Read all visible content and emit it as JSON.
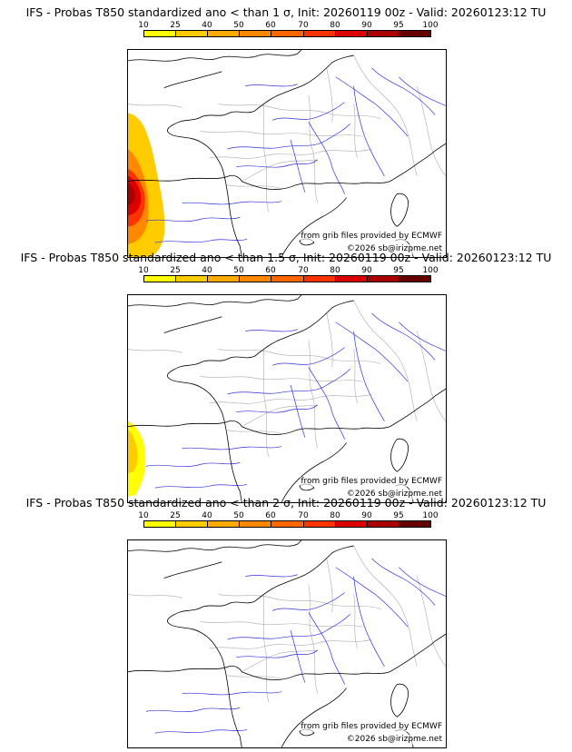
{
  "legend": {
    "labels": [
      "10",
      "25",
      "40",
      "50",
      "60",
      "70",
      "80",
      "90",
      "95",
      "100"
    ],
    "colors": [
      "#ffff00",
      "#ffcc00",
      "#ffaa00",
      "#ff8800",
      "#ff6600",
      "#ff3300",
      "#dd0000",
      "#aa0000",
      "#660000"
    ]
  },
  "panels": [
    {
      "title": "IFS - Probas T850  standardized ano < than 1 σ, Init: 20260119 00z - Valid: 20260123:12 TU",
      "source_credit": "from grib files provided by ECMWF",
      "copyright": "©2026 sb@irizpme.net",
      "anomaly_threshold_sigma": 1
    },
    {
      "title": "IFS - Probas T850  standardized ano < than 1.5 σ, Init: 20260119 00z - Valid: 20260123:12 TU",
      "source_credit": "from grib files provided by ECMWF",
      "copyright": "©2026 sb@irizpme.net",
      "anomaly_threshold_sigma": 1.5
    },
    {
      "title": "IFS - Probas T850  standardized ano < than 2 σ, Init: 20260119 00z - Valid: 20260123:12 TU",
      "source_credit": "from grib files provided by ECMWF",
      "copyright": "©2026 sb@irizpme.net",
      "anomaly_threshold_sigma": 2
    }
  ],
  "map_colors": {
    "coast": "#000000",
    "rivers": "#3030e0",
    "borders": "#aaaaaa"
  }
}
